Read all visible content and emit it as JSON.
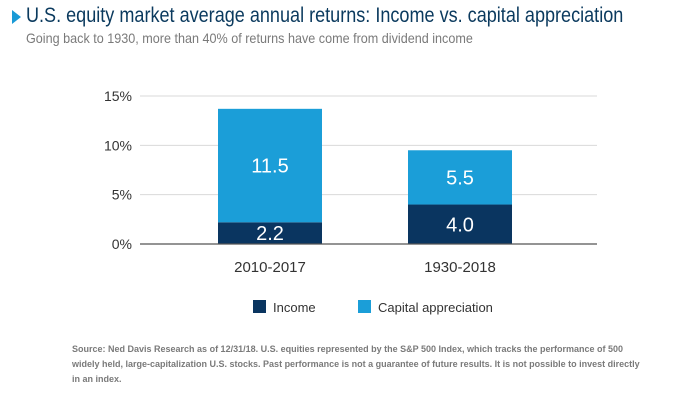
{
  "header": {
    "title": "U.S. equity market average annual returns: Income vs. capital appreciation",
    "subtitle": "Going back to 1930, more than 40% of returns have come from dividend income"
  },
  "chart_data": {
    "type": "bar",
    "stacked": true,
    "categories": [
      "2010-2017",
      "1930-2018"
    ],
    "series": [
      {
        "name": "Income",
        "values": [
          2.2,
          4.0
        ],
        "labels": [
          "2.2",
          "4.0"
        ],
        "color": "#0a3560"
      },
      {
        "name": "Capital appreciation",
        "values": [
          11.5,
          5.5
        ],
        "labels": [
          "11.5",
          "5.5"
        ],
        "color": "#1b9ed8"
      }
    ],
    "y_ticks": [
      0,
      5,
      10,
      15
    ],
    "y_tick_labels": [
      "0%",
      "5%",
      "10%",
      "15%"
    ],
    "ylim": [
      0,
      15
    ],
    "grid": true,
    "legend": "bottom-center"
  },
  "colors": {
    "title": "#0b3a5e",
    "accent": "#1a9ad6",
    "grid": "#d9d9d9",
    "axis": "#555555",
    "label_text": "#333333"
  },
  "footnote": "Source: Ned Davis Research as of 12/31/18. U.S. equities represented by the S&P 500 Index, which tracks the performance of 500 widely held, large-capitalization U.S. stocks. Past performance is not a guarantee of future results. It is not possible to invest directly in an index."
}
